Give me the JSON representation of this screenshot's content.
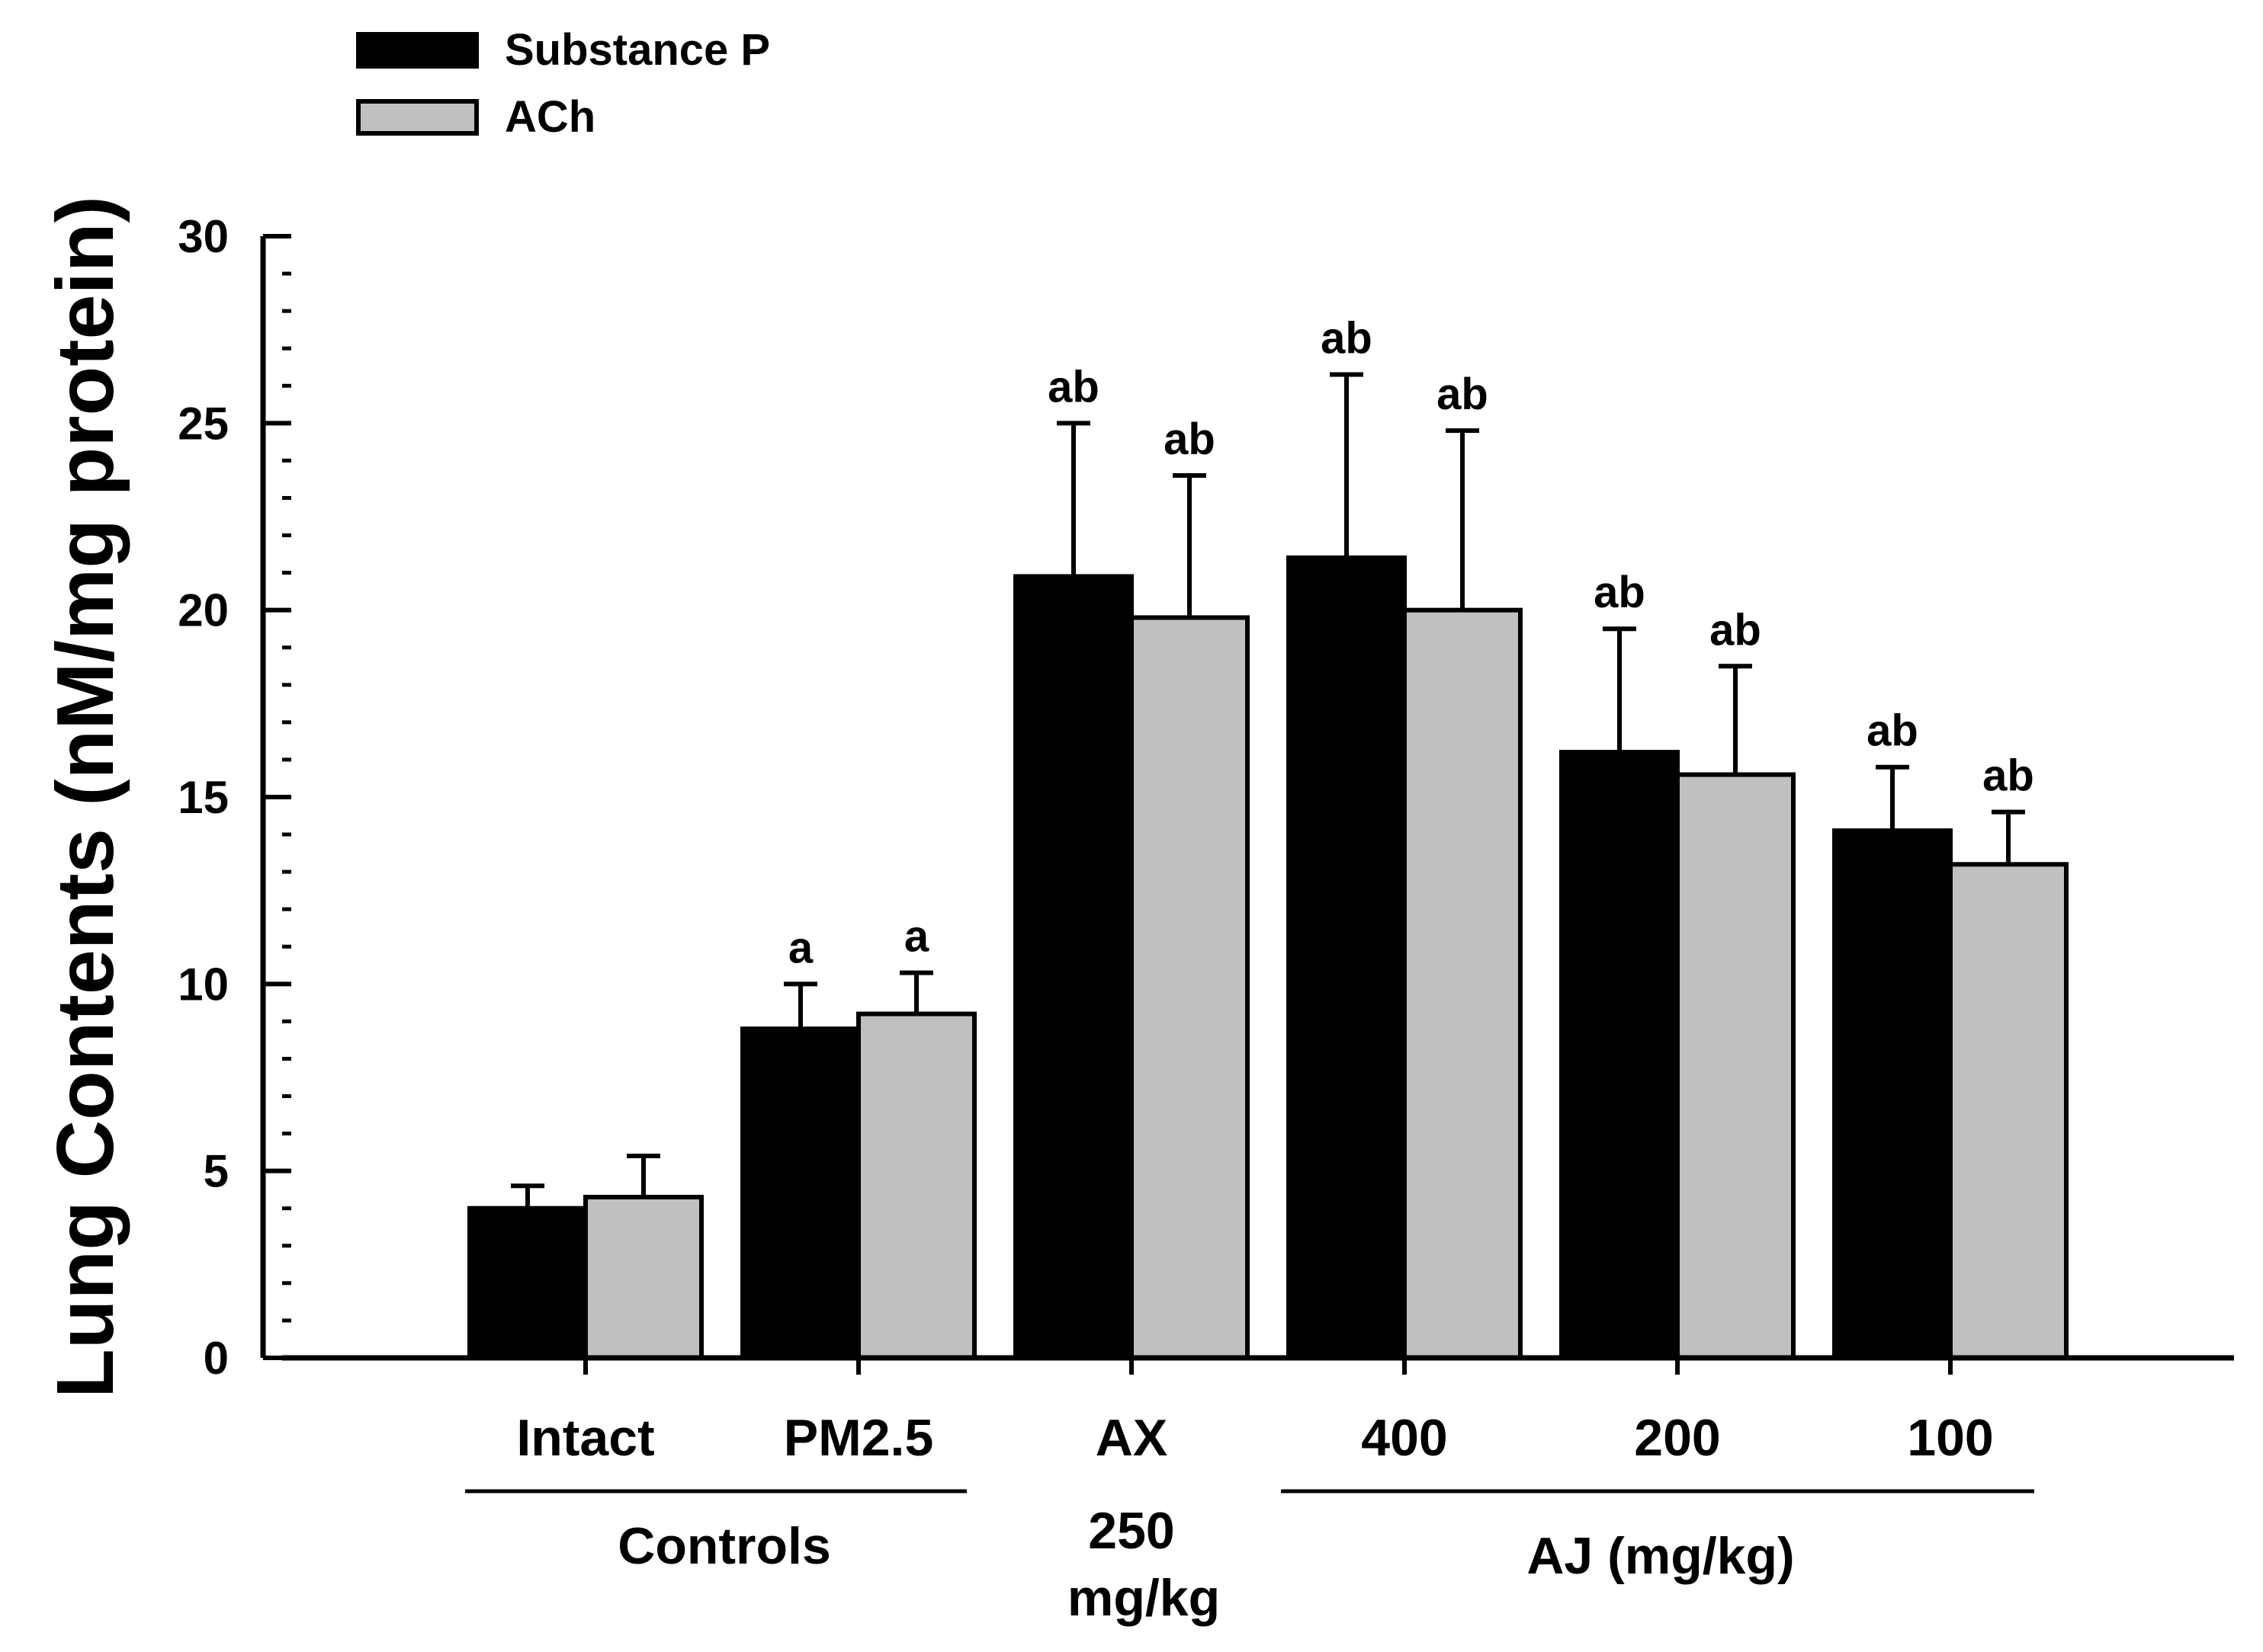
{
  "chart_data": {
    "type": "bar",
    "title": "",
    "ylabel": "Lung Contents (nM/mg protein)",
    "xlabel": "",
    "ylim": [
      0,
      30
    ],
    "yticks": [
      0,
      5,
      10,
      15,
      20,
      25,
      30
    ],
    "legend_position": "top-left",
    "categories": [
      "Intact",
      "PM2.5",
      "AX",
      "400",
      "200",
      "100"
    ],
    "series": [
      {
        "name": "Substance P",
        "color": "#000000",
        "values": [
          4.0,
          8.8,
          20.9,
          21.4,
          16.2,
          14.1
        ],
        "errors": [
          0.6,
          1.2,
          4.1,
          4.9,
          3.3,
          1.7
        ],
        "labels": [
          "",
          "a",
          "ab",
          "ab",
          "ab",
          "ab"
        ]
      },
      {
        "name": "ACh",
        "color": "#c0c0c0",
        "values": [
          4.3,
          9.2,
          19.8,
          20.0,
          15.6,
          13.2
        ],
        "errors": [
          1.1,
          1.1,
          3.8,
          4.8,
          2.9,
          1.4
        ],
        "labels": [
          "",
          "a",
          "ab",
          "ab",
          "ab",
          "ab"
        ]
      }
    ],
    "groups": [
      {
        "label": "Controls",
        "categories": [
          0,
          1
        ]
      },
      {
        "label_lines": [
          "250",
          "mg/kg"
        ],
        "categories": [
          2
        ]
      },
      {
        "label": "AJ (mg/kg)",
        "categories": [
          3,
          4,
          5
        ]
      }
    ],
    "grid": false
  }
}
